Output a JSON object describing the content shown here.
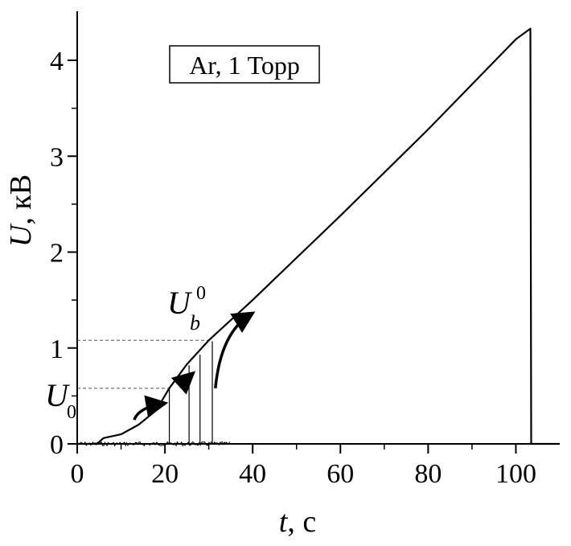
{
  "chart_data": {
    "type": "line",
    "xlabel": {
      "var": "t",
      "unit": ", с"
    },
    "ylabel": {
      "var": "U",
      "unit": ",  кВ"
    },
    "xlim": [
      0,
      110
    ],
    "ylim": [
      -0.05,
      4.5
    ],
    "xticks": [
      0,
      20,
      40,
      60,
      80,
      100
    ],
    "yticks": [
      0,
      1,
      2,
      3,
      4
    ],
    "legend_box": "Ar, 1 Торр",
    "series": [
      {
        "kind": "voltage-ramp",
        "x": [
          0,
          4.5,
          6,
          10,
          14,
          18,
          21,
          25,
          30,
          40,
          60,
          80,
          100,
          103.3,
          103.5,
          110
        ],
        "y": [
          0,
          0,
          0.06,
          0.1,
          0.2,
          0.35,
          0.58,
          0.83,
          1.08,
          1.5,
          2.38,
          3.28,
          4.22,
          4.33,
          0,
          0
        ]
      }
    ],
    "breakdown_lines_x": [
      21,
      25.5,
      28,
      30.8
    ],
    "breakdown_lines_top_y": [
      0.58,
      0.82,
      0.93,
      1.07
    ],
    "reference_levels": [
      {
        "y": 0.58,
        "x_end": 21,
        "label_main": "U",
        "label_sub": "0",
        "label_sup": ""
      },
      {
        "y": 1.08,
        "x_end": 30.8,
        "label_main": "U",
        "label_sub": "b",
        "label_sup": "0"
      }
    ],
    "annotation_arrows": [
      {
        "from": [
          13,
          0.25
        ],
        "to": [
          19.5,
          0.42
        ]
      },
      {
        "from": [
          24.8,
          0.55
        ],
        "to": [
          26,
          0.72
        ]
      },
      {
        "from": [
          31.5,
          0.58
        ],
        "to": [
          39.5,
          1.35
        ]
      }
    ]
  }
}
